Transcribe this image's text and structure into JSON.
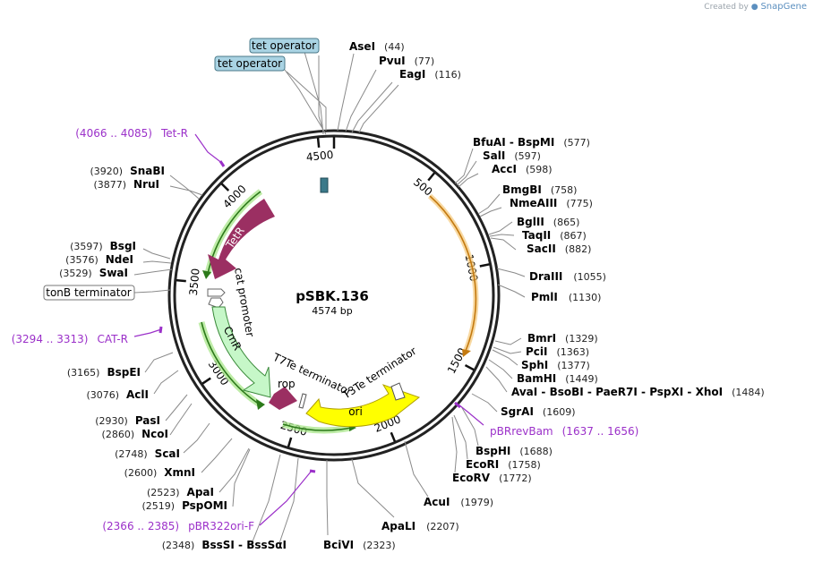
{
  "credit": {
    "prefix": "Created by",
    "brand": "SnapGene"
  },
  "plasmid": {
    "name": "pSBK.136",
    "size_label": "4574 bp",
    "length": 4574
  },
  "ticks": [
    {
      "bp": 500,
      "label": "500"
    },
    {
      "bp": 1000,
      "label": "1000"
    },
    {
      "bp": 1500,
      "label": "1500"
    },
    {
      "bp": 2000,
      "label": "2000"
    },
    {
      "bp": 2500,
      "label": "2500"
    },
    {
      "bp": 3000,
      "label": "3000"
    },
    {
      "bp": 3500,
      "label": "3500"
    },
    {
      "bp": 4000,
      "label": "4000"
    },
    {
      "bp": 4500,
      "label": "4500"
    }
  ],
  "features": [
    {
      "name": "TetR",
      "type": "cds",
      "color": "#9b2f62",
      "label_color": "#ffffff"
    },
    {
      "name": "CmR",
      "type": "cds",
      "color": "#c6f7c8",
      "label_color": "#000000"
    },
    {
      "name": "ori",
      "type": "origin",
      "color": "#ffff00",
      "label_color": "#000000"
    },
    {
      "name": "rop",
      "type": "cds",
      "color": "#9b2f62",
      "label_color": "#000000"
    },
    {
      "name": "cat promoter",
      "type": "promoter",
      "color": "#ffffff"
    },
    {
      "name": "T7Te terminator",
      "type": "terminator",
      "color": "#ffffff"
    },
    {
      "name": "T3Te terminator",
      "type": "terminator",
      "color": "#ffffff"
    },
    {
      "name": "tet operator",
      "type": "operator",
      "color": "#3b7a8a"
    }
  ],
  "boxed_labels": [
    {
      "text": "tet operator",
      "fill": "#a9d3e3"
    },
    {
      "text": "tet operator",
      "fill": "#a9d3e3"
    },
    {
      "text": "tonB terminator",
      "fill": "#ffffff"
    }
  ],
  "enzymes_right": [
    {
      "names": [
        "AseI"
      ],
      "pos": "(44)"
    },
    {
      "names": [
        "PvuI"
      ],
      "pos": "(77)"
    },
    {
      "names": [
        "EagI"
      ],
      "pos": "(116)"
    },
    {
      "names": [
        "BfuAI",
        "BspMI"
      ],
      "pos": "(577)"
    },
    {
      "names": [
        "SalI"
      ],
      "pos": "(597)"
    },
    {
      "names": [
        "AccI"
      ],
      "pos": "(598)"
    },
    {
      "names": [
        "BmgBI"
      ],
      "pos": "(758)"
    },
    {
      "names": [
        "NmeAIII"
      ],
      "pos": "(775)"
    },
    {
      "names": [
        "BglII"
      ],
      "pos": "(865)"
    },
    {
      "names": [
        "TaqII"
      ],
      "pos": "(867)"
    },
    {
      "names": [
        "SacII"
      ],
      "pos": "(882)"
    },
    {
      "names": [
        "DraIII"
      ],
      "pos": "(1055)"
    },
    {
      "names": [
        "PmlI"
      ],
      "pos": "(1130)"
    },
    {
      "names": [
        "BmrI"
      ],
      "pos": "(1329)"
    },
    {
      "names": [
        "PciI"
      ],
      "pos": "(1363)"
    },
    {
      "names": [
        "SphI"
      ],
      "pos": "(1377)"
    },
    {
      "names": [
        "BamHI"
      ],
      "pos": "(1449)"
    },
    {
      "names": [
        "AvaI",
        "BsoBI",
        "PaeR7I",
        "PspXI",
        "XhoI"
      ],
      "pos": "(1484)"
    },
    {
      "names": [
        "SgrAI"
      ],
      "pos": "(1609)"
    },
    {
      "names": [
        "BspHI"
      ],
      "pos": "(1688)"
    },
    {
      "names": [
        "EcoRI"
      ],
      "pos": "(1758)"
    },
    {
      "names": [
        "EcoRV"
      ],
      "pos": "(1772)"
    },
    {
      "names": [
        "AcuI"
      ],
      "pos": "(1979)"
    },
    {
      "names": [
        "ApaLI"
      ],
      "pos": "(2207)"
    },
    {
      "names": [
        "BciVI"
      ],
      "pos": "(2323)"
    }
  ],
  "enzymes_left": [
    {
      "names": [
        "SnaBI"
      ],
      "pos": "(3920)"
    },
    {
      "names": [
        "NruI"
      ],
      "pos": "(3877)"
    },
    {
      "names": [
        "BsgI"
      ],
      "pos": "(3597)"
    },
    {
      "names": [
        "NdeI"
      ],
      "pos": "(3576)"
    },
    {
      "names": [
        "SwaI"
      ],
      "pos": "(3529)"
    },
    {
      "names": [
        "BspEI"
      ],
      "pos": "(3165)"
    },
    {
      "names": [
        "AclI"
      ],
      "pos": "(3076)"
    },
    {
      "names": [
        "PasI"
      ],
      "pos": "(2930)"
    },
    {
      "names": [
        "NcoI"
      ],
      "pos": "(2860)"
    },
    {
      "names": [
        "ScaI"
      ],
      "pos": "(2748)"
    },
    {
      "names": [
        "XmnI"
      ],
      "pos": "(2600)"
    },
    {
      "names": [
        "ApaI"
      ],
      "pos": "(2523)"
    },
    {
      "names": [
        "PspOMI"
      ],
      "pos": "(2519)"
    },
    {
      "names": [
        "BssSI",
        "BssSαI"
      ],
      "pos": "(2348)"
    }
  ],
  "primers": [
    {
      "name": "Tet-R",
      "range": "(4066 .. 4085)"
    },
    {
      "name": "CAT-R",
      "range": "(3294 .. 3313)"
    },
    {
      "name": "pBRrevBam",
      "range": "(1637 .. 1656)"
    },
    {
      "name": "pBR322ori-F",
      "range": "(2366 .. 2385)"
    }
  ]
}
